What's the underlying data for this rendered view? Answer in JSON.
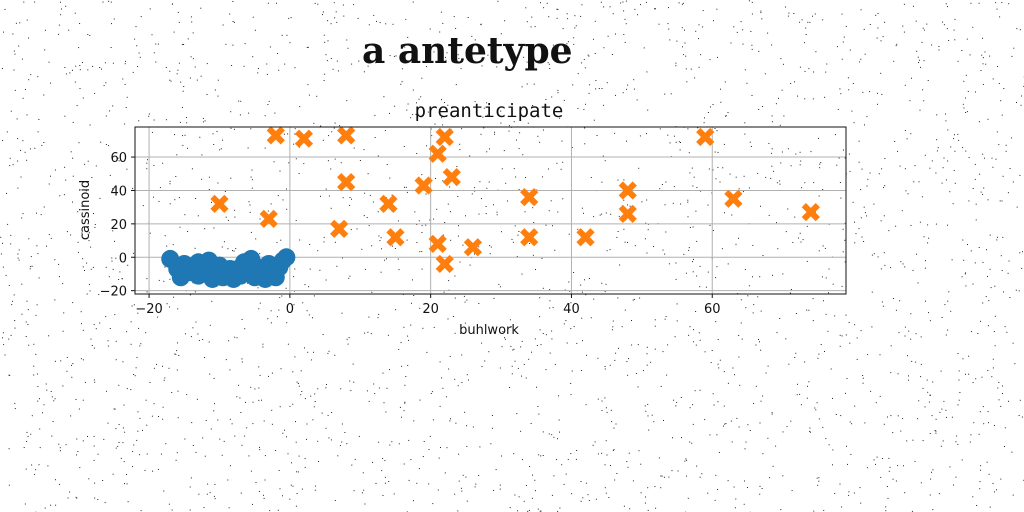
{
  "suptitle": "a antetype",
  "chart_data": {
    "type": "scatter",
    "title": "preanticipate",
    "xlabel": "buhlwork",
    "ylabel": "cassinoid",
    "xlim": [
      -22,
      79
    ],
    "ylim": [
      -22,
      78
    ],
    "xticks": [
      -20,
      0,
      20,
      40,
      60
    ],
    "yticks": [
      -20,
      0,
      20,
      40,
      60
    ],
    "xtick_labels": [
      "−20",
      "0",
      "20",
      "40",
      "60"
    ],
    "ytick_labels": [
      "−20",
      "0",
      "20",
      "40",
      "60"
    ],
    "grid": true,
    "series": [
      {
        "marker": "circle",
        "color": "#1f77b4",
        "points": [
          [
            -17,
            -1
          ],
          [
            -16,
            -7
          ],
          [
            -15.5,
            -12
          ],
          [
            -15,
            -4
          ],
          [
            -14,
            -9
          ],
          [
            -13,
            -11
          ],
          [
            -12,
            -6
          ],
          [
            -11.5,
            -2
          ],
          [
            -11,
            -13
          ],
          [
            -10.5,
            -8
          ],
          [
            -10,
            -5
          ],
          [
            -9.5,
            -12
          ],
          [
            -9,
            -10
          ],
          [
            -8.5,
            -7
          ],
          [
            -8,
            -13
          ],
          [
            -7.5,
            -9
          ],
          [
            -7,
            -11
          ],
          [
            -6.5,
            -3
          ],
          [
            -6,
            -8
          ],
          [
            -5.5,
            -1
          ],
          [
            -5,
            -12
          ],
          [
            -4.5,
            -6
          ],
          [
            -4,
            -10
          ],
          [
            -3.5,
            -13
          ],
          [
            -3,
            -4
          ],
          [
            -2.5,
            -9
          ],
          [
            -2,
            -12
          ],
          [
            -1.5,
            -6
          ],
          [
            -1,
            -2
          ],
          [
            -0.5,
            0
          ],
          [
            -2.5,
            -5
          ],
          [
            -13,
            -3
          ],
          [
            -11,
            -10
          ],
          [
            -7,
            -6
          ]
        ]
      },
      {
        "marker": "x",
        "color": "#ff7f0e",
        "points": [
          [
            -2,
            73
          ],
          [
            2,
            71
          ],
          [
            8,
            73
          ],
          [
            8,
            45
          ],
          [
            7,
            17
          ],
          [
            -10,
            32
          ],
          [
            -3,
            23
          ],
          [
            14,
            32
          ],
          [
            15,
            12
          ],
          [
            19,
            43
          ],
          [
            21,
            62
          ],
          [
            22,
            72
          ],
          [
            23,
            48
          ],
          [
            21,
            8
          ],
          [
            22,
            -4
          ],
          [
            26,
            6
          ],
          [
            34,
            36
          ],
          [
            34,
            12
          ],
          [
            42,
            12
          ],
          [
            48,
            40
          ],
          [
            48,
            26
          ],
          [
            59,
            72
          ],
          [
            63,
            35
          ],
          [
            74,
            27
          ]
        ]
      }
    ]
  }
}
